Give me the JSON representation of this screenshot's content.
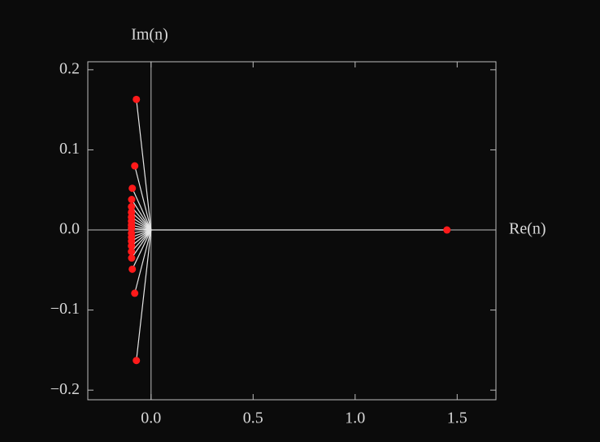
{
  "chart_data": {
    "type": "scatter",
    "x_label": "Re(n)",
    "y_label": "Im(n)",
    "series": [
      {
        "color": "#ff1a1a",
        "x": [
          1.45,
          -0.072,
          -0.08,
          -0.092,
          -0.095,
          -0.096,
          -0.096,
          -0.096,
          -0.096,
          -0.096,
          -0.096,
          -0.096,
          -0.096,
          -0.096,
          -0.096,
          -0.096,
          -0.095,
          -0.092,
          -0.08,
          -0.072
        ],
        "values": [
          0,
          0.163,
          0.08,
          0.052,
          0.038,
          0.029,
          0.022,
          0.016,
          0.011,
          0.006,
          0.002,
          -0.004,
          -0.009,
          -0.014,
          -0.02,
          -0.027,
          -0.035,
          -0.049,
          -0.079,
          -0.163
        ]
      }
    ],
    "spoke_color": "#e6e6e6",
    "xlim": [
      -0.31,
      1.69
    ],
    "ylim": [
      -0.212,
      0.21
    ],
    "xticks": [
      {
        "value": 0,
        "label": "0.0"
      },
      {
        "value": 0.5,
        "label": "0.5"
      },
      {
        "value": 1,
        "label": "1.0"
      },
      {
        "value": 1.5,
        "label": "1.5"
      }
    ],
    "yticks": [
      {
        "value": -0.2,
        "label": "−0.2"
      },
      {
        "value": -0.1,
        "label": "−0.1"
      },
      {
        "value": 0,
        "label": "0.0"
      },
      {
        "value": 0.1,
        "label": "0.1"
      },
      {
        "value": 0.2,
        "label": "0.2"
      }
    ]
  }
}
